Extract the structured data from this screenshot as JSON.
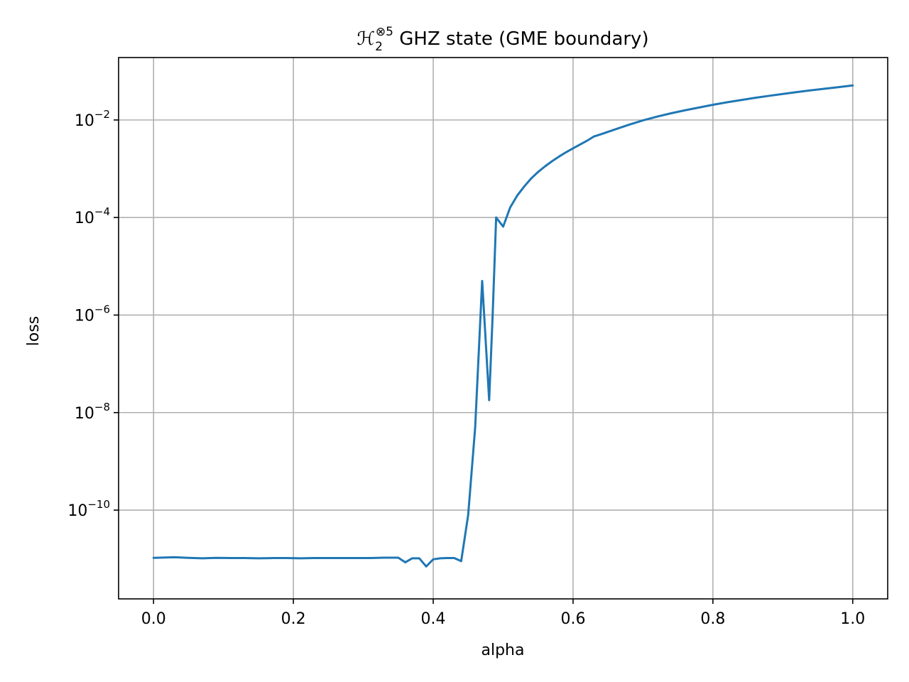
{
  "chart_data": {
    "type": "line",
    "title": {
      "symbol": "ℋ",
      "subscript": "2",
      "superscript": "⊗5",
      "text": " GHZ state (GME boundary)"
    },
    "xlabel": "alpha",
    "ylabel": "loss",
    "xlim": [
      -0.05,
      1.05
    ],
    "ylim_log10": [
      -11.82,
      -0.72
    ],
    "y_scale": "log",
    "grid": true,
    "x_ticks": [
      {
        "value": 0.0,
        "label": "0.0"
      },
      {
        "value": 0.2,
        "label": "0.2"
      },
      {
        "value": 0.4,
        "label": "0.4"
      },
      {
        "value": 0.6,
        "label": "0.6"
      },
      {
        "value": 0.8,
        "label": "0.8"
      },
      {
        "value": 1.0,
        "label": "1.0"
      }
    ],
    "y_ticks": [
      {
        "exponent": -2,
        "base": "10",
        "sup": "−2"
      },
      {
        "exponent": -4,
        "base": "10",
        "sup": "−4"
      },
      {
        "exponent": -6,
        "base": "10",
        "sup": "−6"
      },
      {
        "exponent": -8,
        "base": "10",
        "sup": "−8"
      },
      {
        "exponent": -10,
        "base": "10",
        "sup": "−10"
      }
    ],
    "line_color": "#1f77b4",
    "series": [
      {
        "x": [
          0.0,
          0.03,
          0.05,
          0.07,
          0.09,
          0.11,
          0.13,
          0.15,
          0.17,
          0.19,
          0.21,
          0.23,
          0.25,
          0.27,
          0.29,
          0.31,
          0.33,
          0.35,
          0.36,
          0.37,
          0.38,
          0.39,
          0.4,
          0.41,
          0.42,
          0.43,
          0.44,
          0.45,
          0.46,
          0.47,
          0.48,
          0.485,
          0.49,
          0.5,
          0.51,
          0.52,
          0.53,
          0.54,
          0.55,
          0.56,
          0.57,
          0.58,
          0.59,
          0.6,
          0.62,
          0.63,
          0.64,
          0.66,
          0.68,
          0.7,
          0.72,
          0.74,
          0.76,
          0.78,
          0.8,
          0.82,
          0.84,
          0.86,
          0.88,
          0.9,
          0.92,
          0.94,
          0.96,
          0.98,
          1.0
        ],
        "y": [
          1.05e-11,
          1.08e-11,
          1.05e-11,
          1.03e-11,
          1.05e-11,
          1.04e-11,
          1.04e-11,
          1.03e-11,
          1.04e-11,
          1.04e-11,
          1.03e-11,
          1.04e-11,
          1.04e-11,
          1.04e-11,
          1.04e-11,
          1.04e-11,
          1.06e-11,
          1.06e-11,
          8.5e-12,
          1.03e-11,
          1.03e-11,
          7e-12,
          9.8e-12,
          1.03e-11,
          1.04e-11,
          1.04e-11,
          9e-12,
          8e-11,
          5e-09,
          5e-06,
          1.8e-08,
          1e-06,
          0.0001,
          6.5e-05,
          0.00016,
          0.00028,
          0.00043,
          0.00063,
          0.00086,
          0.00112,
          0.00143,
          0.00178,
          0.00218,
          0.00262,
          0.00375,
          0.0046,
          0.0051,
          0.0064,
          0.008,
          0.0098,
          0.0117,
          0.0137,
          0.0158,
          0.018,
          0.0205,
          0.023,
          0.0256,
          0.0284,
          0.0312,
          0.0342,
          0.0373,
          0.0405,
          0.0438,
          0.0472,
          0.051
        ]
      }
    ]
  }
}
